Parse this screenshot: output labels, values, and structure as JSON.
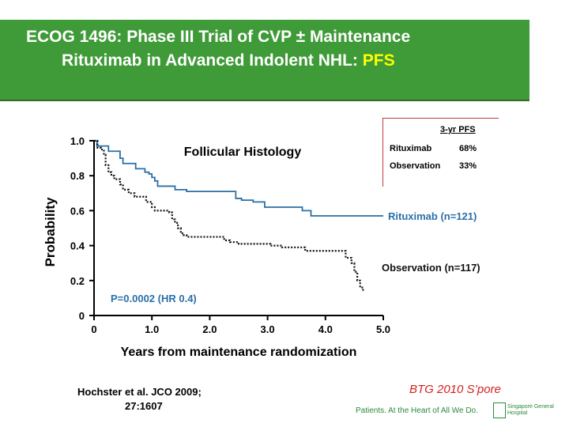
{
  "title": {
    "line1": "ECOG 1496: Phase III Trial of CVP ± Maintenance",
    "line2_prefix": "Rituximab in Advanced Indolent NHL: ",
    "line2_highlight": "PFS",
    "colors": {
      "banner": "#3f9a38",
      "text": "#ffffff",
      "highlight": "#ffff00"
    }
  },
  "chart_data": {
    "type": "line",
    "title": "Follicular Histology",
    "xlabel": "Years from maintenance randomization",
    "ylabel": "Probability",
    "xlim": [
      0,
      5
    ],
    "ylim": [
      0,
      1
    ],
    "xticks": [
      "0",
      "1.0",
      "2.0",
      "3.0",
      "4.0",
      "5.0"
    ],
    "yticks": [
      "0",
      "0.2",
      "0.4",
      "0.6",
      "0.8",
      "1.0"
    ],
    "grid": false,
    "annotation": "P=0.0002 (HR 0.4)",
    "series": [
      {
        "name": "Rituximab (n=121)",
        "color": "#2a6fa8",
        "style": "solid",
        "points": [
          [
            0,
            1.0
          ],
          [
            0.05,
            0.97
          ],
          [
            0.2,
            0.97
          ],
          [
            0.25,
            0.94
          ],
          [
            0.38,
            0.94
          ],
          [
            0.45,
            0.9
          ],
          [
            0.5,
            0.87
          ],
          [
            0.68,
            0.87
          ],
          [
            0.72,
            0.84
          ],
          [
            0.82,
            0.84
          ],
          [
            0.88,
            0.82
          ],
          [
            0.95,
            0.81
          ],
          [
            1.0,
            0.79
          ],
          [
            1.05,
            0.77
          ],
          [
            1.1,
            0.74
          ],
          [
            1.35,
            0.74
          ],
          [
            1.4,
            0.72
          ],
          [
            1.55,
            0.72
          ],
          [
            1.6,
            0.71
          ],
          [
            2.4,
            0.71
          ],
          [
            2.45,
            0.67
          ],
          [
            2.55,
            0.66
          ],
          [
            2.7,
            0.66
          ],
          [
            2.75,
            0.65
          ],
          [
            2.9,
            0.65
          ],
          [
            2.95,
            0.62
          ],
          [
            3.5,
            0.62
          ],
          [
            3.6,
            0.6
          ],
          [
            3.65,
            0.6
          ],
          [
            3.75,
            0.57
          ],
          [
            5.0,
            0.57
          ]
        ]
      },
      {
        "name": "Observation (n=117)",
        "color": "#111111",
        "style": "dotted",
        "points": [
          [
            0,
            1.0
          ],
          [
            0.06,
            0.96
          ],
          [
            0.12,
            0.95
          ],
          [
            0.17,
            0.92
          ],
          [
            0.2,
            0.86
          ],
          [
            0.25,
            0.82
          ],
          [
            0.3,
            0.8
          ],
          [
            0.35,
            0.78
          ],
          [
            0.45,
            0.75
          ],
          [
            0.5,
            0.72
          ],
          [
            0.6,
            0.7
          ],
          [
            0.7,
            0.68
          ],
          [
            0.9,
            0.65
          ],
          [
            1.0,
            0.62
          ],
          [
            1.05,
            0.6
          ],
          [
            1.3,
            0.59
          ],
          [
            1.35,
            0.55
          ],
          [
            1.4,
            0.53
          ],
          [
            1.45,
            0.5
          ],
          [
            1.5,
            0.47
          ],
          [
            1.55,
            0.46
          ],
          [
            1.6,
            0.45
          ],
          [
            2.2,
            0.45
          ],
          [
            2.25,
            0.43
          ],
          [
            2.35,
            0.42
          ],
          [
            2.5,
            0.41
          ],
          [
            3.0,
            0.41
          ],
          [
            3.05,
            0.4
          ],
          [
            3.2,
            0.4
          ],
          [
            3.25,
            0.39
          ],
          [
            3.35,
            0.39
          ],
          [
            3.55,
            0.39
          ],
          [
            3.65,
            0.37
          ],
          [
            4.3,
            0.37
          ],
          [
            4.35,
            0.33
          ],
          [
            4.45,
            0.3
          ],
          [
            4.5,
            0.25
          ],
          [
            4.55,
            0.2
          ],
          [
            4.6,
            0.16
          ],
          [
            4.65,
            0.14
          ]
        ]
      }
    ]
  },
  "pfs_table": {
    "header": "3-yr PFS",
    "rows": [
      {
        "name": "Rituximab",
        "value": "68%"
      },
      {
        "name": "Observation",
        "value": "33%"
      }
    ]
  },
  "citation": {
    "line1": "Hochster et al. JCO 2009;",
    "line2": "27:1607"
  },
  "footer": {
    "tag": "BTG 2010 S’pore",
    "slogan": "Patients. At the Heart of All We Do.",
    "hospital": "Singapore General Hospital"
  }
}
